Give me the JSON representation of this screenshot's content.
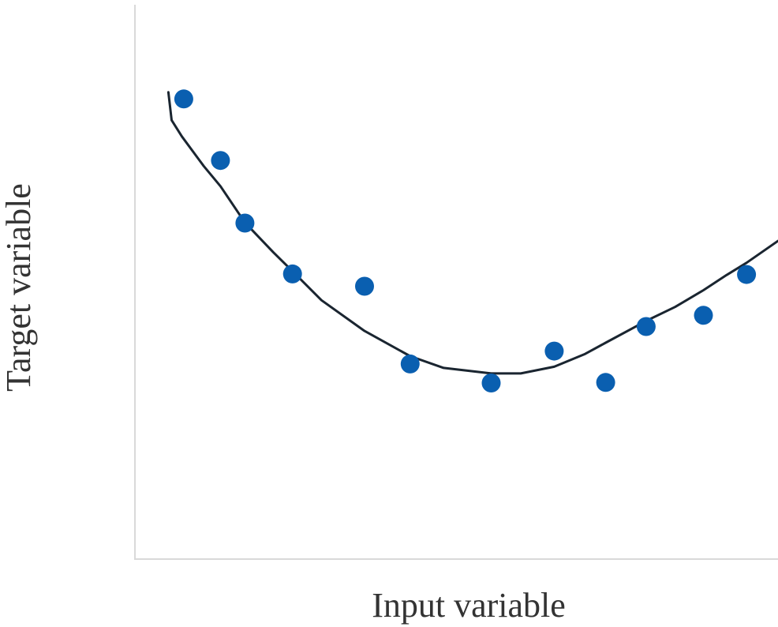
{
  "chart_data": {
    "type": "scatter",
    "title": "",
    "xlabel": "Input variable",
    "ylabel": "Target variable",
    "xlim": [
      0,
      100
    ],
    "ylim": [
      0,
      100
    ],
    "grid": false,
    "ticks_shown": false,
    "series": [
      {
        "kind": "points",
        "color": "#0a5fb0",
        "x": [
          7.6,
          13.3,
          17.1,
          24.5,
          35.7,
          42.8,
          55.4,
          65.2,
          73.2,
          79.5,
          88.4,
          95.1
        ],
        "y": [
          82.3,
          71.3,
          60.1,
          51.0,
          48.8,
          34.9,
          31.5,
          37.2,
          31.6,
          41.6,
          43.6,
          50.9
        ]
      },
      {
        "kind": "trend-line",
        "color": "#1a2530",
        "x": [
          5.2,
          5.7,
          7.3,
          10.7,
          13.3,
          17.1,
          21.5,
          24.5,
          29.0,
          35.7,
          42.8,
          48.0,
          55.4,
          60.0,
          65.2,
          70.0,
          73.2,
          79.5,
          84.0,
          88.4,
          92.0,
          95.1,
          100.0
        ],
        "y": [
          83.5,
          78.5,
          75.6,
          70.3,
          66.7,
          60.2,
          54.9,
          51.5,
          46.3,
          40.8,
          36.3,
          34.2,
          33.2,
          33.2,
          34.4,
          36.7,
          38.7,
          42.6,
          45.1,
          48.1,
          50.8,
          53.0,
          56.9
        ]
      }
    ]
  }
}
